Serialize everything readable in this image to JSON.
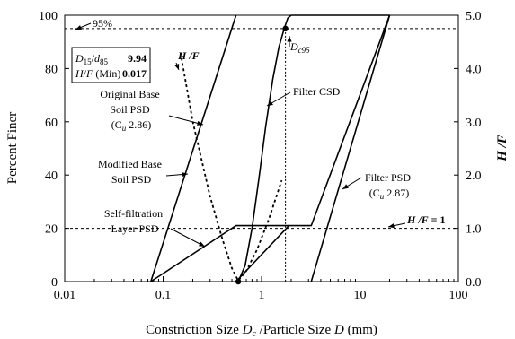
{
  "chart_data": {
    "type": "line",
    "x_axis": {
      "scale": "log",
      "range": [
        0.01,
        100
      ],
      "ticks": [
        "0.01",
        "0.1",
        "1",
        "10",
        "100"
      ],
      "label_parts": [
        "Constriction Size ",
        "D",
        "c",
        " /Particle Size ",
        "D",
        "  (mm)"
      ]
    },
    "y_axis_left": {
      "label": "Percent Finer",
      "range": [
        0,
        100
      ],
      "ticks": [
        "0",
        "20",
        "40",
        "60",
        "80",
        "100"
      ]
    },
    "y_axis_right": {
      "label": "H /F",
      "range": [
        0,
        5
      ],
      "ticks": [
        "0.0",
        "1.0",
        "2.0",
        "3.0",
        "4.0",
        "5.0"
      ]
    },
    "grid": false,
    "series": [
      {
        "name": "Original Base Soil PSD",
        "axis": "left",
        "style": "solid",
        "x": [
          0.075,
          0.55
        ],
        "y": [
          0,
          100
        ]
      },
      {
        "name": "Modified Base Soil PSD",
        "axis": "left",
        "style": "solid",
        "x": [
          0.075,
          0.55,
          1.9
        ],
        "y": [
          0,
          21,
          21
        ]
      },
      {
        "name": "Filter PSD",
        "axis": "left",
        "style": "solid",
        "x": [
          3.2,
          20
        ],
        "y": [
          0,
          100
        ]
      },
      {
        "name": "Filter CSD",
        "axis": "left",
        "style": "solid",
        "x": [
          0.55,
          1.9,
          3.2,
          20
        ],
        "y": [
          0,
          21,
          21,
          100
        ]
      },
      {
        "name": "Filter CSD",
        "axis": "left",
        "style": "solid",
        "x": [
          0.58,
          0.68,
          0.8,
          0.95,
          1.1,
          1.3,
          1.5,
          1.7,
          1.85,
          2.0,
          2.3,
          3.0,
          20
        ],
        "y": [
          0,
          6,
          20,
          40,
          58,
          76,
          88,
          95,
          99,
          100,
          100,
          100,
          100
        ]
      },
      {
        "name": "H /F",
        "axis": "right",
        "style": "dotted",
        "x": [
          0.15,
          0.2,
          0.3,
          0.4,
          0.5,
          0.58,
          0.7,
          0.9,
          1.2,
          1.6
        ],
        "y": [
          4.3,
          3.0,
          1.6,
          0.8,
          0.25,
          0.017,
          0.2,
          0.6,
          1.2,
          1.9
        ]
      }
    ],
    "reference_lines": {
      "h95": {
        "y": 95,
        "label": "95%"
      },
      "hf1": {
        "y": 20,
        "label_parts": [
          "H /F",
          " = 1"
        ]
      },
      "v_dc95": {
        "x": 1.75
      }
    },
    "points": {
      "dc95": {
        "x": 1.75,
        "y": 95,
        "label_parts": [
          "D",
          "c95"
        ]
      },
      "min_hf": {
        "x": 0.58,
        "y": 0
      }
    },
    "stats_box": {
      "row1_parts": [
        "D",
        "15",
        "/",
        "d",
        "85"
      ],
      "row1_value": "9.94",
      "row2_parts": [
        "H",
        "/",
        "F",
        " (Min)"
      ],
      "row2_value": "0.017"
    },
    "annotations": {
      "hf_label": "H /F",
      "original_base": [
        "Original Base",
        "Soil PSD",
        "(C",
        "u",
        " 2.86)"
      ],
      "modified_base": [
        "Modified Base",
        "Soil PSD"
      ],
      "self_filtration": [
        "Self-filtration",
        "Layer PSD"
      ],
      "filter_csd": "Filter CSD",
      "filter_psd": [
        "Filter PSD",
        "(C",
        "u",
        " 2.87)"
      ]
    }
  }
}
